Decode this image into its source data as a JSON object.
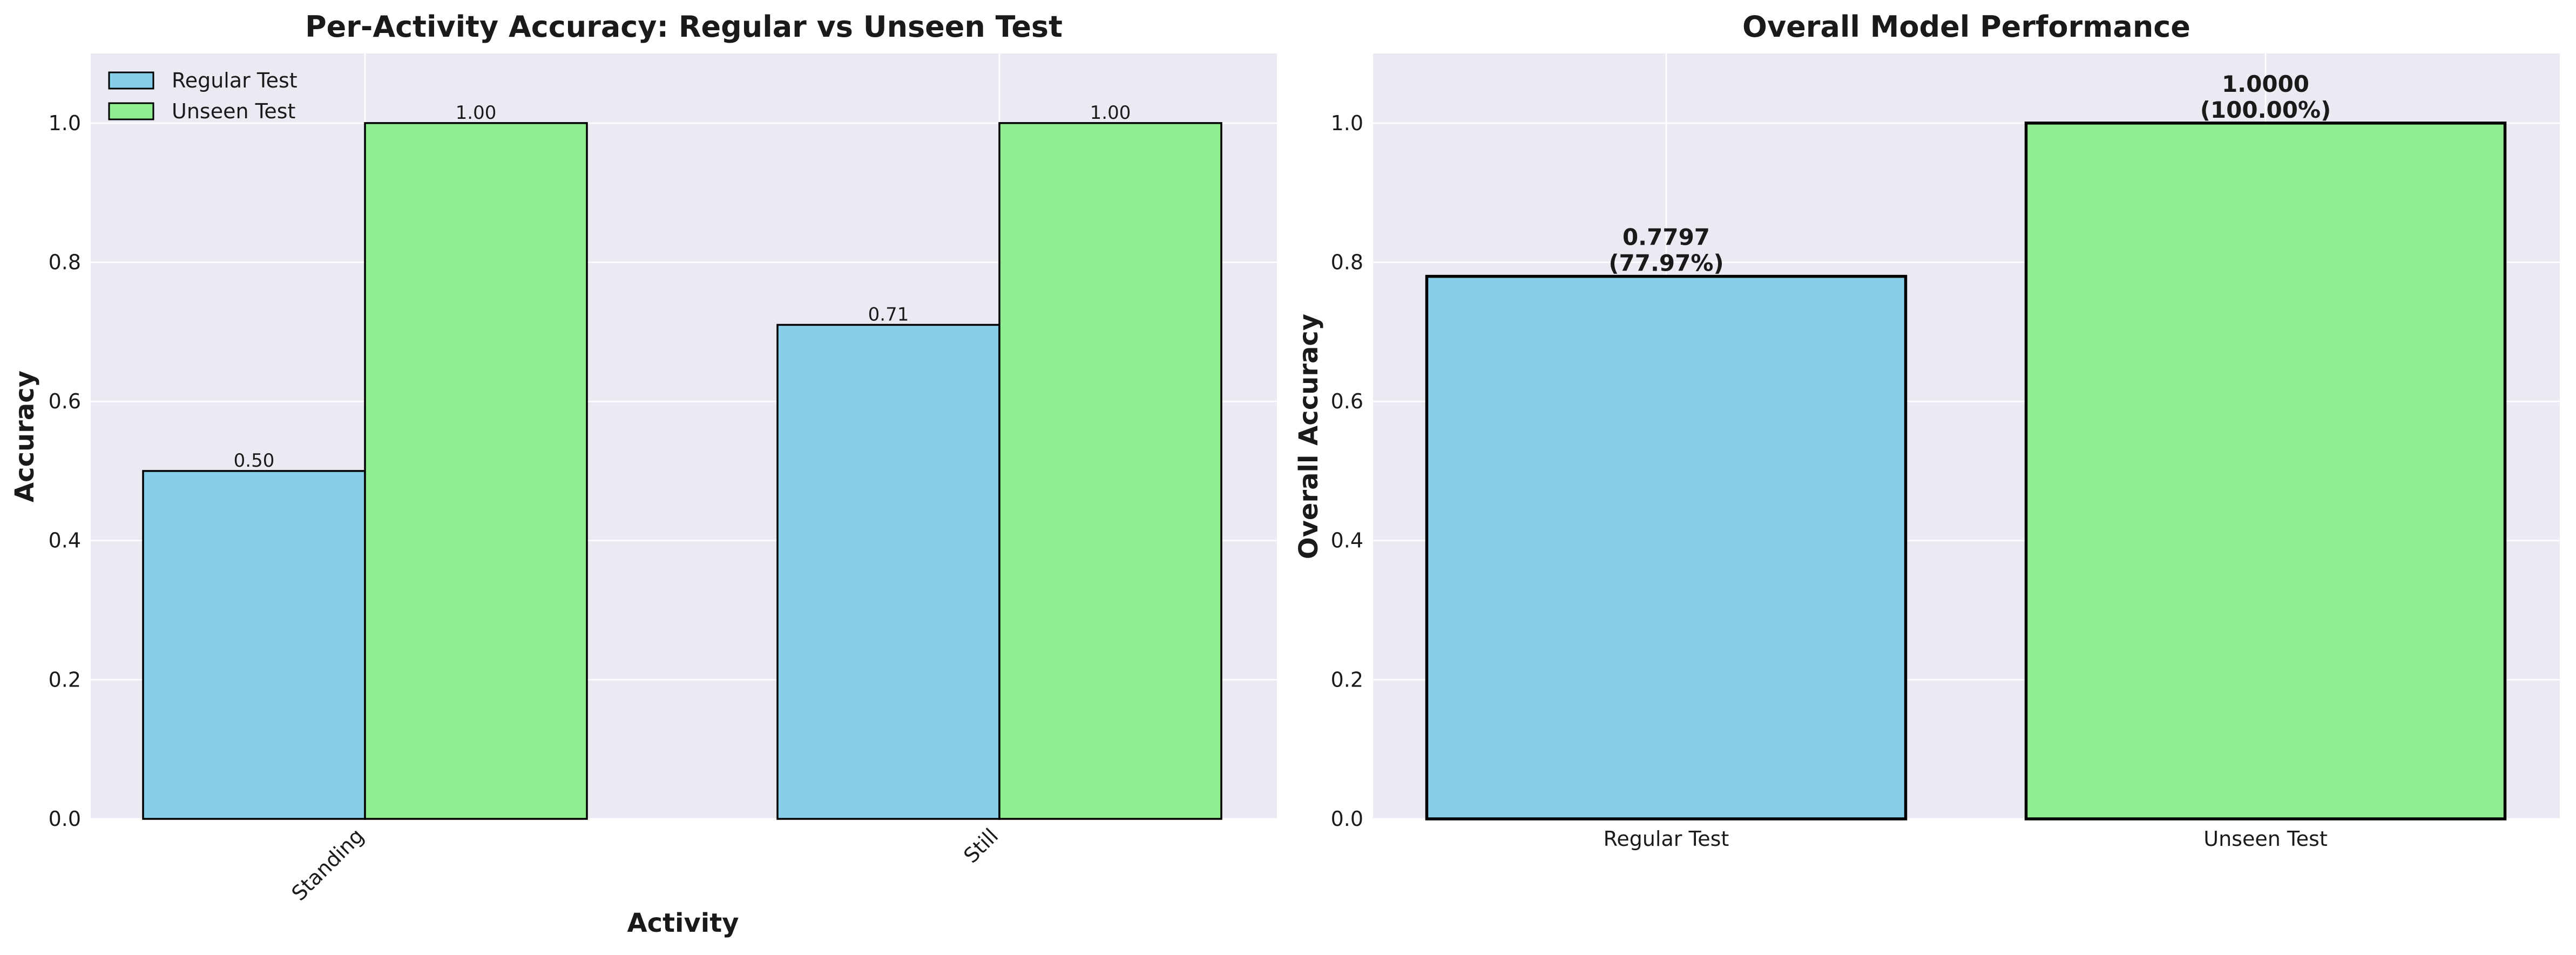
{
  "colors": {
    "regular": "#87CEEB",
    "unseen": "#90EE90",
    "plot_bg": "#EAEAF2",
    "grid": "#FFFFFF",
    "edge": "#000000"
  },
  "chart_data": [
    {
      "type": "bar",
      "title": "Per-Activity Accuracy: Regular vs Unseen Test",
      "xlabel": "Activity",
      "ylabel": "Accuracy",
      "categories": [
        "Standing",
        "Still"
      ],
      "series": [
        {
          "name": "Regular Test",
          "values": [
            0.5,
            0.71
          ],
          "labels": [
            "0.50",
            "0.71"
          ],
          "color": "#87CEEB"
        },
        {
          "name": "Unseen Test",
          "values": [
            1.0,
            1.0
          ],
          "labels": [
            "1.00",
            "1.00"
          ],
          "color": "#90EE90"
        }
      ],
      "ylim": [
        0,
        1.1
      ],
      "yticks": [
        "0.0",
        "0.2",
        "0.4",
        "0.6",
        "0.8",
        "1.0"
      ],
      "legend": "upper-left",
      "grid": true
    },
    {
      "type": "bar",
      "title": "Overall Model Performance",
      "xlabel": "",
      "ylabel": "Overall Accuracy",
      "categories": [
        "Regular Test",
        "Unseen Test"
      ],
      "values": [
        0.7797,
        1.0
      ],
      "labels": [
        [
          "0.7797",
          "(77.97%)"
        ],
        [
          "1.0000",
          "(100.00%)"
        ]
      ],
      "colors": [
        "#87CEEB",
        "#90EE90"
      ],
      "ylim": [
        0,
        1.1
      ],
      "yticks": [
        "0.0",
        "0.2",
        "0.4",
        "0.6",
        "0.8",
        "1.0"
      ],
      "grid": true
    }
  ]
}
